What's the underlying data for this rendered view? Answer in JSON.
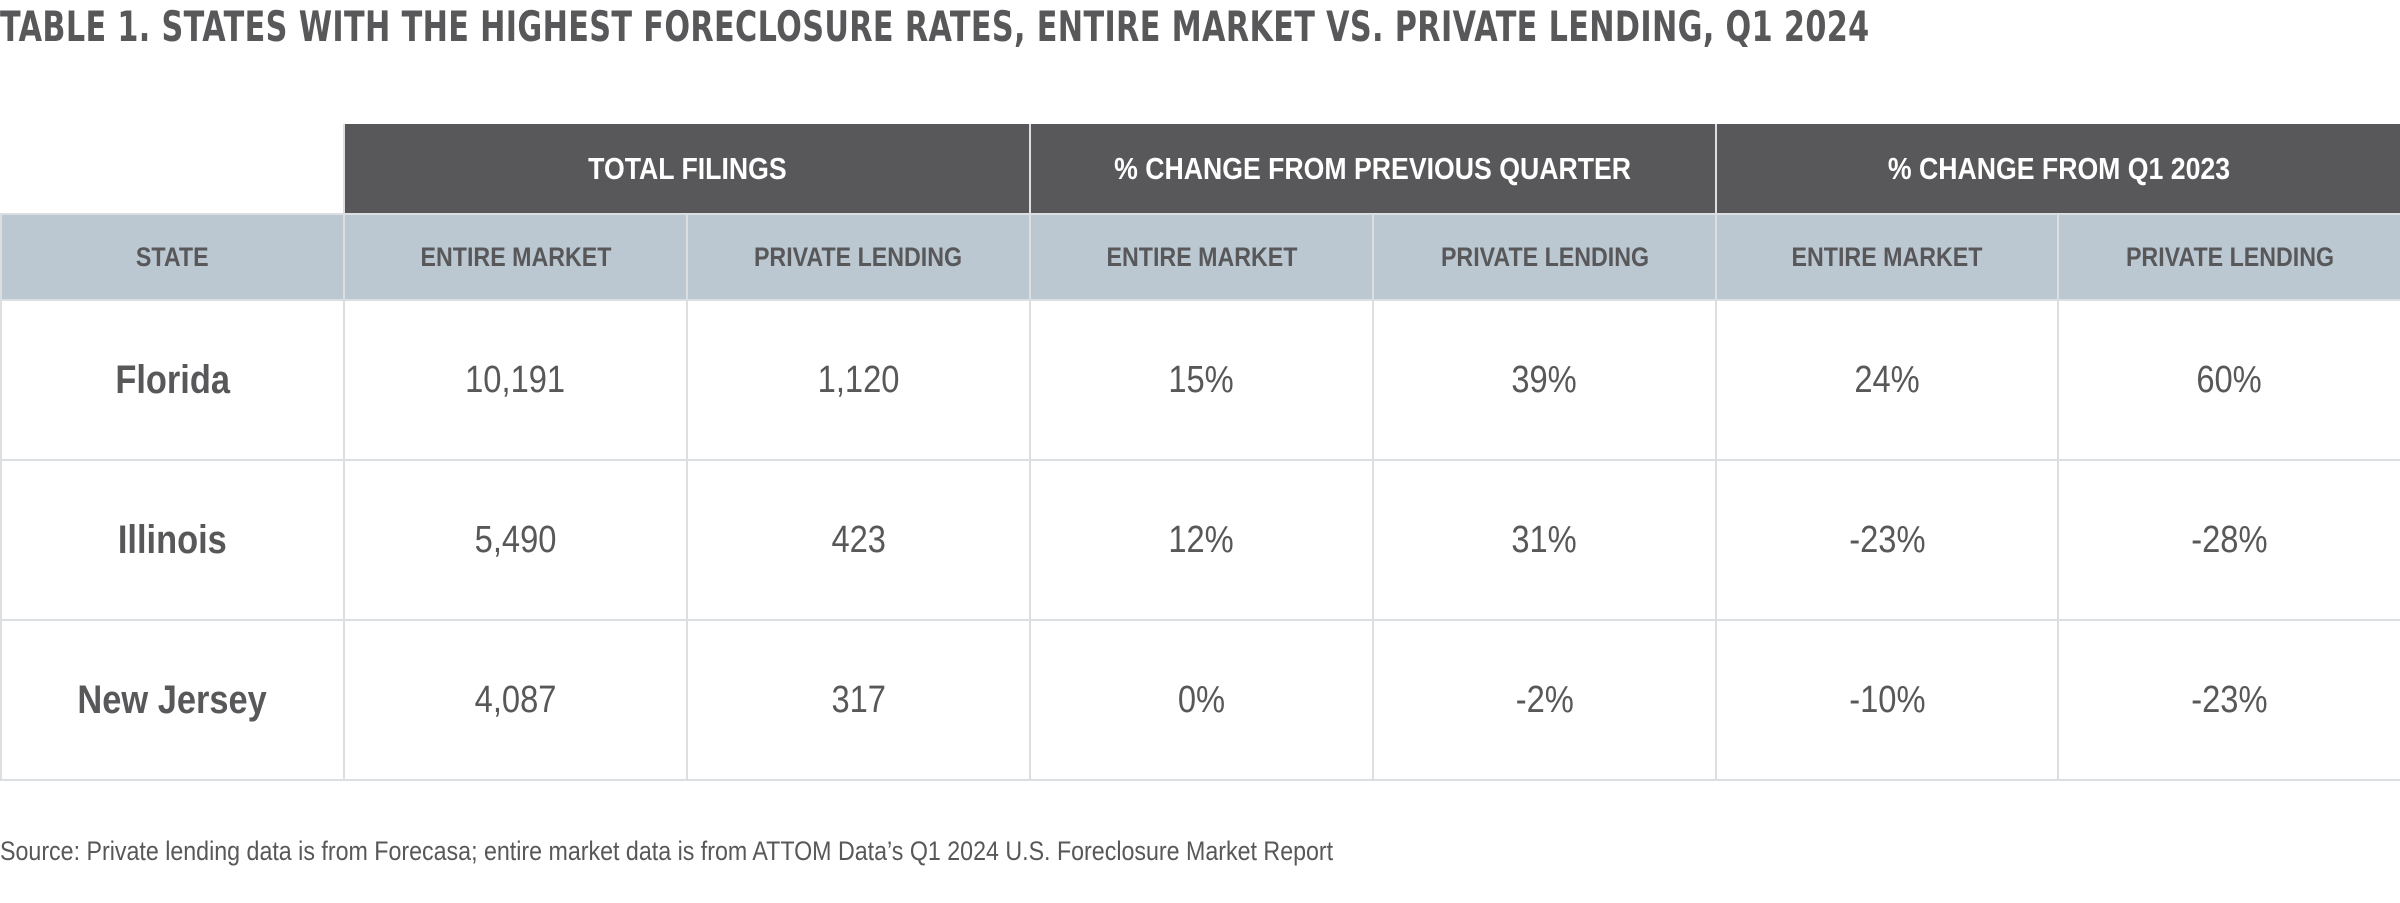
{
  "chart_data": {
    "type": "table",
    "title": "TABLE 1. STATES WITH THE HIGHEST FORECLOSURE RATES, ENTIRE MARKET VS. PRIVATE LENDING, Q1 2024",
    "column_groups": [
      {
        "label": "TOTAL FILINGS",
        "span": 2
      },
      {
        "label": "% CHANGE FROM PREVIOUS QUARTER",
        "span": 2
      },
      {
        "label": "% CHANGE FROM Q1 2023",
        "span": 2
      }
    ],
    "columns": [
      "STATE",
      "ENTIRE MARKET",
      "PRIVATE LENDING",
      "ENTIRE MARKET",
      "PRIVATE LENDING",
      "ENTIRE MARKET",
      "PRIVATE LENDING"
    ],
    "rows": [
      [
        "Florida",
        "10,191",
        "1,120",
        "15%",
        "39%",
        "24%",
        "60%"
      ],
      [
        "Illinois",
        "5,490",
        "423",
        "12%",
        "31%",
        "-23%",
        "-28%"
      ],
      [
        "New Jersey",
        "4,087",
        "317",
        "0%",
        "-2%",
        "-10%",
        "-23%"
      ]
    ],
    "source": "Source: Private lending data is from Forecasa; entire market data is from ATTOM Data’s Q1 2024 U.S. Foreclosure Market Report"
  },
  "colors": {
    "group_header_bg": "#58585a",
    "subheader_bg": "#bcc8d1",
    "text": "#58585a",
    "grid": "#dcdfe2"
  }
}
